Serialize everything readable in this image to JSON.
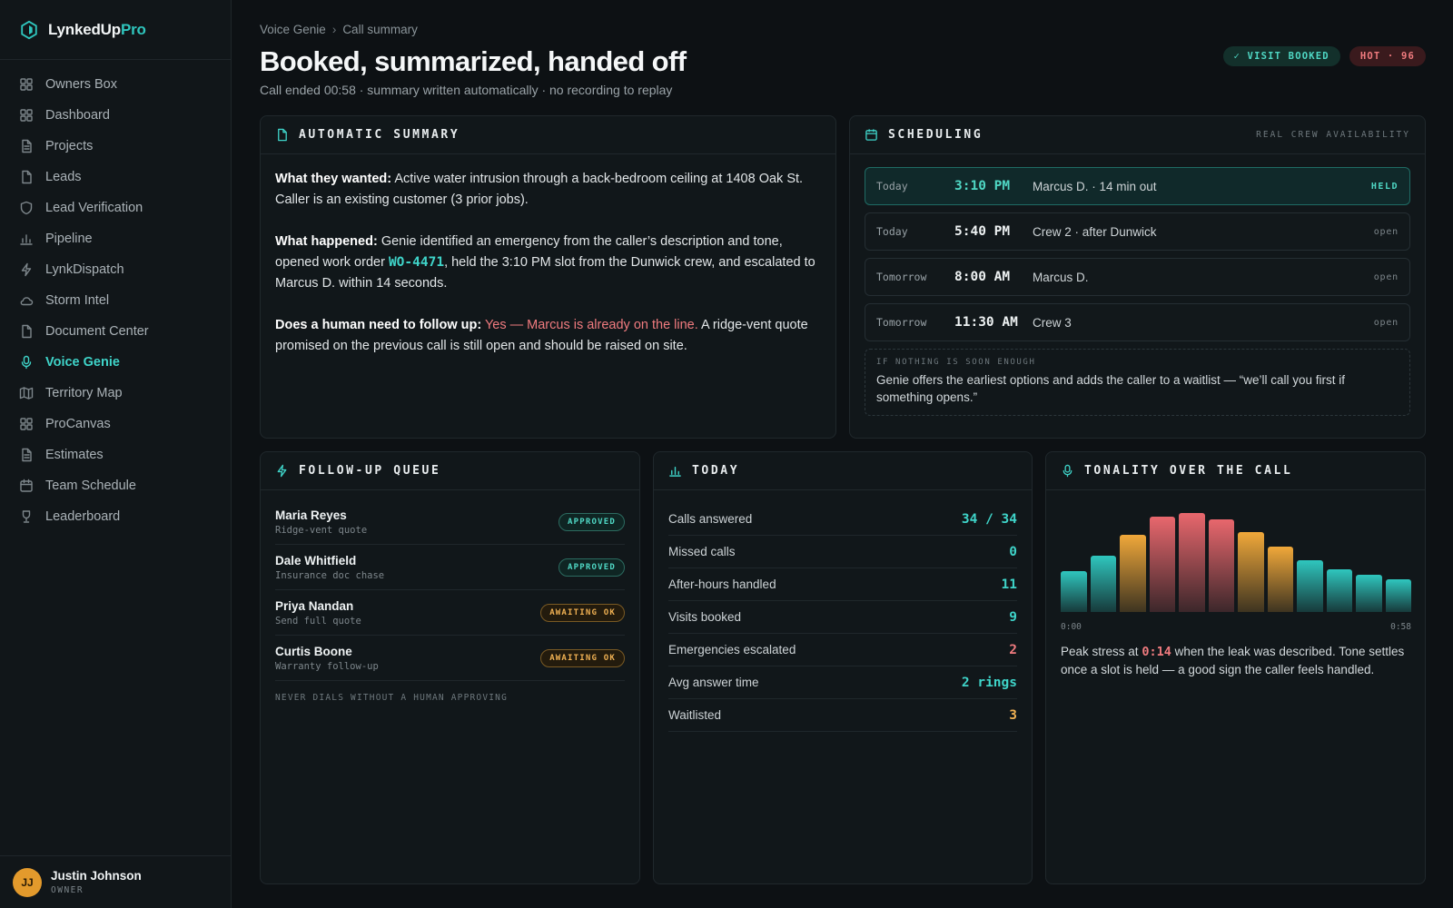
{
  "brand": {
    "name": "LynkedUp",
    "suffix": "Pro"
  },
  "nav": [
    {
      "label": "Owners Box",
      "icon": "grid-icon"
    },
    {
      "label": "Dashboard",
      "icon": "grid-icon"
    },
    {
      "label": "Projects",
      "icon": "document-icon"
    },
    {
      "label": "Leads",
      "icon": "file-icon"
    },
    {
      "label": "Lead Verification",
      "icon": "shield-icon"
    },
    {
      "label": "Pipeline",
      "icon": "bar-chart-icon"
    },
    {
      "label": "LynkDispatch",
      "icon": "lightning-icon"
    },
    {
      "label": "Storm Intel",
      "icon": "cloud-icon"
    },
    {
      "label": "Document Center",
      "icon": "file-icon"
    },
    {
      "label": "Voice Genie",
      "icon": "microphone-icon",
      "active": true
    },
    {
      "label": "Territory Map",
      "icon": "map-icon"
    },
    {
      "label": "ProCanvas",
      "icon": "grid-icon"
    },
    {
      "label": "Estimates",
      "icon": "document-icon"
    },
    {
      "label": "Team Schedule",
      "icon": "calendar-icon"
    },
    {
      "label": "Leaderboard",
      "icon": "trophy-icon"
    }
  ],
  "user": {
    "initials": "JJ",
    "name": "Justin Johnson",
    "role": "OWNER"
  },
  "breadcrumb": {
    "parent": "Voice Genie",
    "separator": "›",
    "current": "Call summary"
  },
  "page": {
    "title": "Booked, summarized, handed off",
    "subtitle": "Call ended 00:58 · summary written automatically · no recording to replay"
  },
  "badges": {
    "visit": "✓ VISIT BOOKED",
    "hot": "HOT · 96"
  },
  "summary": {
    "title": "AUTOMATIC SUMMARY",
    "wanted_label": "What they wanted:",
    "wanted_text": "Active water intrusion through a back-bedroom ceiling at 1408 Oak St. Caller is an existing customer (3 prior jobs).",
    "happened_label": "What happened:",
    "happened_text_1": "Genie identified an emergency from the caller’s description and tone, opened work order",
    "work_order": "WO-4471",
    "happened_text_2": ", held the 3:10 PM slot from the Dunwick crew, and escalated to Marcus D. within 14 seconds.",
    "followup_label": "Does a human need to follow up:",
    "followup_alert": "Yes — Marcus is already on the line.",
    "followup_text": "A ridge-vent quote promised on the previous call is still open and should be raised on site."
  },
  "scheduling": {
    "title": "SCHEDULING",
    "note": "REAL CREW AVAILABILITY",
    "slots": [
      {
        "day": "Today",
        "time": "3:10 PM",
        "desc": "Marcus D. · 14 min out",
        "status": "HELD",
        "held": true
      },
      {
        "day": "Today",
        "time": "5:40 PM",
        "desc": "Crew 2 · after Dunwick",
        "status": "open"
      },
      {
        "day": "Tomorrow",
        "time": "8:00 AM",
        "desc": "Marcus D.",
        "status": "open"
      },
      {
        "day": "Tomorrow",
        "time": "11:30 AM",
        "desc": "Crew 3",
        "status": "open"
      }
    ],
    "fallback_label": "IF NOTHING IS SOON ENOUGH",
    "fallback_text": "Genie offers the earliest options and adds the caller to a waitlist — “we’ll call you first if something opens.”"
  },
  "queue": {
    "title": "FOLLOW-UP QUEUE",
    "items": [
      {
        "name": "Maria Reyes",
        "task": "Ridge-vent quote",
        "status": "APPROVED",
        "kind": "approved"
      },
      {
        "name": "Dale Whitfield",
        "task": "Insurance doc chase",
        "status": "APPROVED",
        "kind": "approved"
      },
      {
        "name": "Priya Nandan",
        "task": "Send full quote",
        "status": "AWAITING OK",
        "kind": "awaiting"
      },
      {
        "name": "Curtis Boone",
        "task": "Warranty follow-up",
        "status": "AWAITING OK",
        "kind": "awaiting"
      }
    ],
    "note": "NEVER DIALS WITHOUT A HUMAN APPROVING"
  },
  "today": {
    "title": "TODAY",
    "stats": [
      {
        "label": "Calls answered",
        "value": "34 / 34",
        "color": "#3fd4c9"
      },
      {
        "label": "Missed calls",
        "value": "0",
        "color": "#3fd4c9"
      },
      {
        "label": "After-hours handled",
        "value": "11",
        "color": "#3fd4c9"
      },
      {
        "label": "Visits booked",
        "value": "9",
        "color": "#3fd4c9"
      },
      {
        "label": "Emergencies escalated",
        "value": "2",
        "color": "#f07b7f"
      },
      {
        "label": "Avg answer time",
        "value": "2 rings",
        "color": "#3fd4c9"
      },
      {
        "label": "Waitlisted",
        "value": "3",
        "color": "#f0b153"
      }
    ]
  },
  "tonality": {
    "title": "TONALITY OVER THE CALL",
    "start_label": "0:00",
    "end_label": "0:58",
    "text_1": "Peak stress at",
    "peak_time": "0:14",
    "text_2": "when the leak was described. Tone settles once a slot is held — a good sign the caller feels handled."
  },
  "chart_data": {
    "type": "bar",
    "title": "TONALITY OVER THE CALL",
    "x_range_labels": [
      "0:00",
      "0:58"
    ],
    "values": [
      0.41,
      0.56,
      0.77,
      0.95,
      0.99,
      0.93,
      0.8,
      0.65,
      0.52,
      0.43,
      0.37,
      0.33
    ],
    "colors": [
      "#2fc6be",
      "#2fc6be",
      "#f0a83a",
      "#e8676d",
      "#e8676d",
      "#e8676d",
      "#f0a83a",
      "#f0a83a",
      "#2fc6be",
      "#2fc6be",
      "#2fc6be",
      "#2fc6be"
    ],
    "ylim": [
      0,
      1
    ],
    "grid": false,
    "legend": "none"
  }
}
